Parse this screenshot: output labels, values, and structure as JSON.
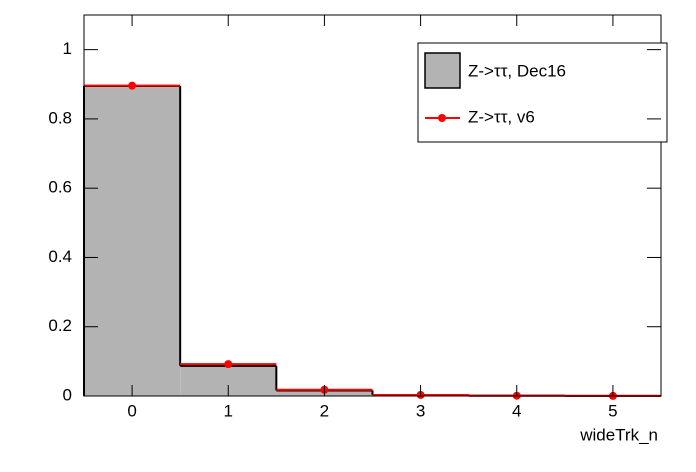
{
  "chart_data": {
    "type": "histogram",
    "x_label": "wideTrk_n",
    "bins": [
      -0.5,
      0.5,
      1.5,
      2.5,
      3.5,
      4.5,
      5.5
    ],
    "series": [
      {
        "name": "Z->ττ, Dec16",
        "style": "filled",
        "color": "#b3b3b3",
        "values": [
          0.895,
          0.087,
          0.016,
          0.003,
          0.001,
          0.0005
        ]
      },
      {
        "name": "Z->ττ, v6",
        "style": "markers",
        "color": "#ff0000",
        "values": [
          0.896,
          0.092,
          0.018,
          0.003,
          0.0008,
          0.0003
        ]
      }
    ],
    "xlim": [
      -0.5,
      5.5
    ],
    "xticks": [
      0,
      1,
      2,
      3,
      4,
      5
    ],
    "ylim": [
      0,
      1.1
    ],
    "yticks": [
      0,
      0.2,
      0.4,
      0.6,
      0.8,
      1
    ]
  }
}
